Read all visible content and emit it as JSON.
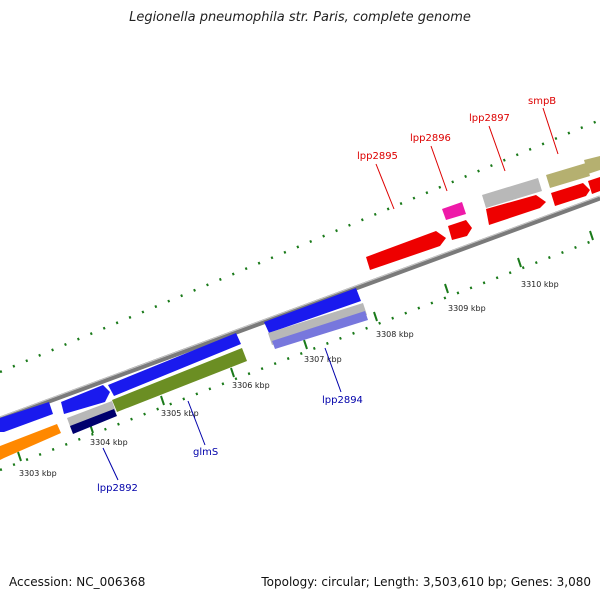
{
  "title": "Legionella pneumophila str. Paris, complete genome",
  "footer": {
    "accession": "Accession: NC_006368",
    "summary": "Topology: circular; Length: 3,503,610 bp; Genes: 3,080"
  },
  "scale_labels": [
    "3303 kbp",
    "3304 kbp",
    "3305 kbp",
    "3306 kbp",
    "3307 kbp",
    "3308 kbp",
    "3309 kbp",
    "3310 kbp"
  ],
  "gene_labels": [
    {
      "text": "lpp2892",
      "strand": "reverse"
    },
    {
      "text": "glmS",
      "strand": "reverse"
    },
    {
      "text": "lpp2894",
      "strand": "reverse"
    },
    {
      "text": "lpp2895",
      "strand": "forward"
    },
    {
      "text": "lpp2896",
      "strand": "forward"
    },
    {
      "text": "lpp2897",
      "strand": "forward"
    },
    {
      "text": "smpB",
      "strand": "forward"
    }
  ],
  "colors": {
    "forward_label": "#dd0000",
    "reverse_label": "#0000aa",
    "backbone": "#7a7a7a",
    "ticks": "#1a7a1a",
    "cds_red": "#ee0000",
    "cds_blue": "#1a1aee",
    "cds_orange": "#ff8800",
    "cds_olive": "#6b8e23",
    "cds_gray": "#b8b8b8",
    "cds_khaki": "#b5b070",
    "cds_magenta": "#ee1aa8",
    "cds_navy": "#00006e",
    "cds_lavender": "#7777dd"
  }
}
